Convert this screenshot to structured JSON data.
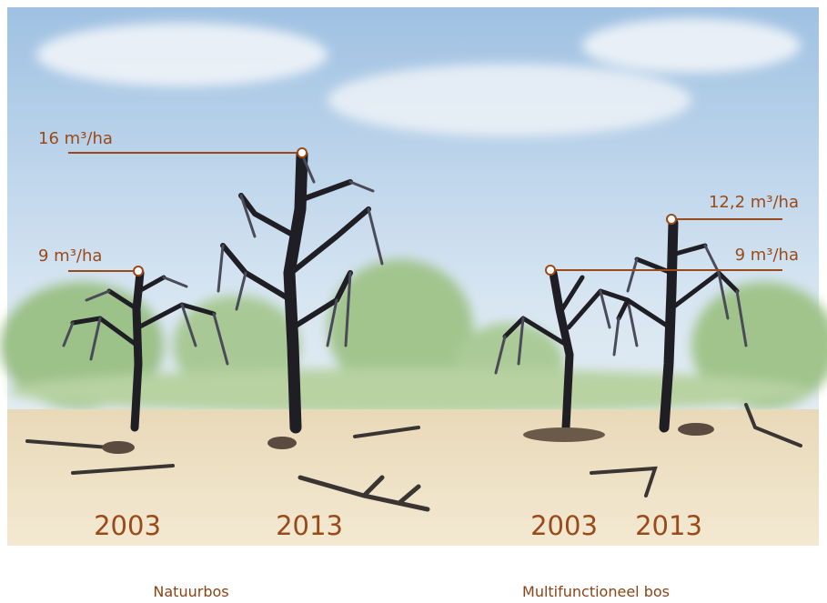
{
  "panels": [
    {
      "annotations": [
        {
          "label": "16 m³/ha"
        },
        {
          "label": "9 m³/ha"
        }
      ],
      "years": [
        "2003",
        "2013"
      ],
      "caption": "Natuurbos"
    },
    {
      "annotations": [
        {
          "label": "12,2 m³/ha"
        },
        {
          "label": "9 m³/ha"
        }
      ],
      "years": [
        "2003",
        "2013"
      ],
      "caption": "Multifunctioneel bos"
    }
  ]
}
